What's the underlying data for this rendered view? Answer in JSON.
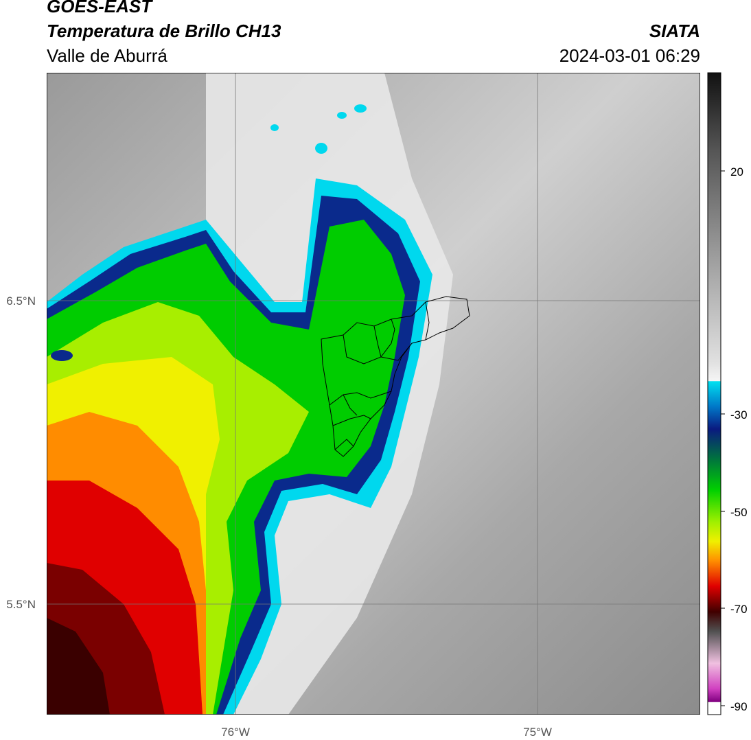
{
  "header": {
    "satellite": "GOES-EAST",
    "product": "Temperatura de Brillo CH13",
    "region": "Valle de Aburrá",
    "agency": "SIATA",
    "datetime": "2024-03-01 06:29"
  },
  "axes": {
    "lat_labels": [
      "6.5°N",
      "5.5°N"
    ],
    "lon_labels": [
      "76°W",
      "75°W"
    ]
  },
  "colorbar": {
    "ticks": [
      "20",
      "-30",
      "-50",
      "-70",
      "-90"
    ],
    "colors": {
      "cyan": "#00d8ee",
      "blue": "#0a2a8c",
      "green": "#00cc00",
      "yellow": "#f0f000",
      "orange": "#ff8c00",
      "red": "#e00000",
      "darkred": "#400000",
      "magenta": "#e030c0"
    }
  }
}
